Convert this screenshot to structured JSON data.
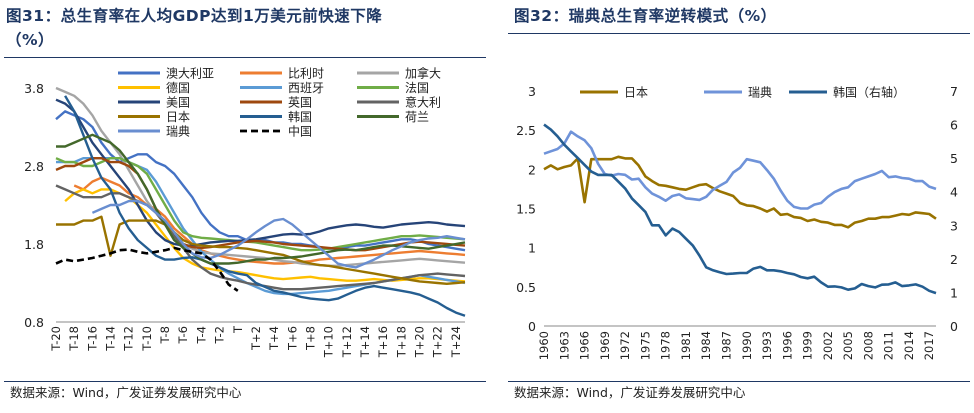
{
  "left": {
    "title_line1": "图31：总生育率在人均GDP达到1万美元前快速下降",
    "title_line2": "（%）",
    "source": "数据来源：Wind，广发证券发展研究中心"
  },
  "right": {
    "title": "图32：瑞典总生育率逆转模式（%）",
    "source": "数据来源：Wind，广发证券发展研究中心"
  },
  "chart_data": [
    {
      "type": "line",
      "title": "总生育率在人均GDP达到1万美元前快速下降（%）",
      "categories": [
        "T-20",
        "T-19",
        "T-18",
        "T-17",
        "T-16",
        "T-15",
        "T-14",
        "T-13",
        "T-12",
        "T-11",
        "T-10",
        "T-9",
        "T-8",
        "T-7",
        "T-6",
        "T-5",
        "T-4",
        "T-3",
        "T-2",
        "T-1",
        "T",
        "T+1",
        "T+2",
        "T+3",
        "T+4",
        "T+5",
        "T+6",
        "T+7",
        "T+8",
        "T+9",
        "T+10",
        "T+11",
        "T+12",
        "T+13",
        "T+14",
        "T+15",
        "T+16",
        "T+17",
        "T+18",
        "T+19",
        "T+20",
        "T+21",
        "T+22",
        "T+23",
        "T+24",
        "T+25"
      ],
      "tick_labels": [
        "T-20",
        "T-18",
        "T-16",
        "T-14",
        "T-12",
        "T-10",
        "T-8",
        "T-6",
        "T-4",
        "T-2",
        "T",
        "T+2",
        "T+4",
        "T+6",
        "T+8",
        "T+10",
        "T+12",
        "T+14",
        "T+16",
        "T+18",
        "T+20",
        "T+22",
        "T+24"
      ],
      "ylim": [
        0.8,
        3.8
      ],
      "yticks": [
        0.8,
        1.8,
        2.8,
        3.8
      ],
      "legend_position": "top",
      "series": [
        {
          "name": "澳大利亚",
          "color": "#4472c4",
          "dash": false,
          "values": [
            3.4,
            3.5,
            3.45,
            3.4,
            3.3,
            3.1,
            2.95,
            2.85,
            2.9,
            2.95,
            2.95,
            2.85,
            2.8,
            2.7,
            2.55,
            2.4,
            2.2,
            2.05,
            1.95,
            1.9,
            1.9,
            1.85,
            1.85,
            1.85,
            1.82,
            1.82,
            1.8,
            1.8,
            1.78,
            1.76,
            1.74,
            1.74,
            1.76,
            1.78,
            1.78,
            1.8,
            1.82,
            1.84,
            1.86,
            1.86,
            1.84,
            1.8,
            1.78,
            1.76,
            1.74,
            1.72
          ]
        },
        {
          "name": "比利时",
          "color": "#ed7d31",
          "dash": false,
          "values": [
            null,
            null,
            2.55,
            2.5,
            2.6,
            2.65,
            2.6,
            2.55,
            2.45,
            2.4,
            2.3,
            2.25,
            2.15,
            2.0,
            1.9,
            1.8,
            1.72,
            1.68,
            1.65,
            1.62,
            1.6,
            1.58,
            1.57,
            1.56,
            1.55,
            1.55,
            1.56,
            1.57,
            1.58,
            1.6,
            1.61,
            1.62,
            1.63,
            1.64,
            1.65,
            1.66,
            1.67,
            1.68,
            1.69,
            1.7,
            1.71,
            1.7,
            1.69,
            1.68,
            1.67,
            1.66
          ]
        },
        {
          "name": "加拿大",
          "color": "#a5a5a5",
          "dash": false,
          "values": [
            3.8,
            3.75,
            3.7,
            3.6,
            3.45,
            3.25,
            3.1,
            2.95,
            2.75,
            2.55,
            2.35,
            2.2,
            2.05,
            1.9,
            1.8,
            1.74,
            1.7,
            1.68,
            1.67,
            1.66,
            1.65,
            1.64,
            1.63,
            1.62,
            1.6,
            1.58,
            1.57,
            1.55,
            1.54,
            1.53,
            1.52,
            1.52,
            1.53,
            1.54,
            1.55,
            1.56,
            1.57,
            1.58,
            1.59,
            1.6,
            1.61,
            1.6,
            1.59,
            1.58,
            1.57,
            1.56
          ]
        },
        {
          "name": "德国",
          "color": "#ffc000",
          "dash": false,
          "values": [
            null,
            2.35,
            2.45,
            2.5,
            2.45,
            2.5,
            2.5,
            2.45,
            2.4,
            2.3,
            2.2,
            2.05,
            1.9,
            1.75,
            1.62,
            1.55,
            1.5,
            1.48,
            1.46,
            1.45,
            1.44,
            1.42,
            1.4,
            1.38,
            1.36,
            1.35,
            1.36,
            1.37,
            1.38,
            1.36,
            1.35,
            1.34,
            1.33,
            1.33,
            1.34,
            1.35,
            1.34,
            1.33,
            1.34,
            1.35,
            1.36,
            1.36,
            1.35,
            1.34,
            1.33,
            1.32
          ]
        },
        {
          "name": "西班牙",
          "color": "#5b9bd5",
          "dash": false,
          "values": [
            2.85,
            2.85,
            2.85,
            2.9,
            2.9,
            2.9,
            2.9,
            2.9,
            2.85,
            2.8,
            2.75,
            2.6,
            2.4,
            2.2,
            2.0,
            1.85,
            1.7,
            1.6,
            1.5,
            1.42,
            1.36,
            1.3,
            1.25,
            1.2,
            1.17,
            1.16,
            1.16,
            1.17,
            1.18,
            1.19,
            1.2,
            1.22,
            1.24,
            1.26,
            1.28,
            1.3,
            1.32,
            1.34,
            1.36,
            1.38,
            1.4,
            1.38,
            1.36,
            1.34,
            1.32,
            1.3
          ]
        },
        {
          "name": "法国",
          "color": "#70ad47",
          "dash": false,
          "values": [
            2.9,
            2.85,
            2.85,
            2.8,
            2.8,
            2.85,
            2.9,
            2.9,
            2.85,
            2.8,
            2.7,
            2.5,
            2.3,
            2.1,
            1.95,
            1.9,
            1.88,
            1.87,
            1.86,
            1.85,
            1.84,
            1.83,
            1.82,
            1.8,
            1.78,
            1.76,
            1.74,
            1.72,
            1.72,
            1.73,
            1.74,
            1.76,
            1.78,
            1.8,
            1.82,
            1.84,
            1.86,
            1.88,
            1.9,
            1.9,
            1.91,
            1.9,
            1.89,
            1.88,
            1.87,
            1.86
          ]
        },
        {
          "name": "美国",
          "color": "#264478",
          "dash": false,
          "values": [
            3.65,
            3.6,
            3.5,
            3.3,
            3.1,
            2.95,
            2.8,
            2.65,
            2.5,
            2.3,
            2.1,
            1.95,
            1.85,
            1.8,
            1.78,
            1.78,
            1.8,
            1.82,
            1.83,
            1.84,
            1.84,
            1.85,
            1.86,
            1.88,
            1.9,
            1.92,
            1.93,
            1.92,
            1.93,
            1.96,
            2.0,
            2.02,
            2.04,
            2.05,
            2.04,
            2.02,
            2.01,
            2.03,
            2.05,
            2.06,
            2.07,
            2.08,
            2.07,
            2.05,
            2.04,
            2.03
          ]
        },
        {
          "name": "英国",
          "color": "#9e480e",
          "dash": false,
          "values": [
            2.75,
            2.8,
            2.8,
            2.85,
            2.9,
            2.9,
            2.85,
            2.85,
            2.8,
            2.7,
            2.5,
            2.25,
            2.05,
            1.9,
            1.8,
            1.76,
            1.75,
            1.76,
            1.78,
            1.8,
            1.82,
            1.83,
            1.84,
            1.83,
            1.82,
            1.8,
            1.79,
            1.78,
            1.77,
            1.76,
            1.75,
            1.74,
            1.73,
            1.72,
            1.72,
            1.74,
            1.76,
            1.78,
            1.8,
            1.82,
            1.83,
            1.82,
            1.81,
            1.8,
            1.79,
            1.78
          ]
        },
        {
          "name": "意大利",
          "color": "#636363",
          "dash": false,
          "values": [
            2.55,
            2.5,
            2.45,
            2.4,
            2.4,
            2.4,
            2.45,
            2.45,
            2.4,
            2.35,
            2.3,
            2.2,
            2.05,
            1.9,
            1.75,
            1.6,
            1.5,
            1.42,
            1.38,
            1.35,
            1.33,
            1.3,
            1.28,
            1.26,
            1.24,
            1.22,
            1.22,
            1.22,
            1.23,
            1.24,
            1.25,
            1.26,
            1.27,
            1.28,
            1.29,
            1.3,
            1.32,
            1.34,
            1.36,
            1.38,
            1.4,
            1.41,
            1.42,
            1.41,
            1.4,
            1.39
          ]
        },
        {
          "name": "日本",
          "color": "#997300",
          "dash": false,
          "values": [
            2.05,
            2.05,
            2.05,
            2.1,
            2.1,
            2.15,
            1.65,
            2.05,
            2.1,
            2.1,
            2.1,
            2.1,
            2.05,
            1.95,
            1.85,
            1.8,
            1.78,
            1.77,
            1.76,
            1.76,
            1.75,
            1.74,
            1.72,
            1.7,
            1.68,
            1.66,
            1.62,
            1.58,
            1.55,
            1.53,
            1.52,
            1.5,
            1.48,
            1.46,
            1.44,
            1.42,
            1.4,
            1.38,
            1.36,
            1.34,
            1.32,
            1.31,
            1.3,
            1.29,
            1.3,
            1.31
          ]
        },
        {
          "name": "韩国",
          "color": "#255e91",
          "dash": false,
          "values": [
            null,
            3.7,
            3.5,
            3.2,
            2.9,
            2.65,
            2.5,
            2.2,
            2.0,
            1.85,
            1.75,
            1.65,
            1.6,
            1.6,
            1.62,
            1.63,
            1.6,
            1.55,
            1.5,
            1.45,
            1.42,
            1.4,
            1.3,
            1.25,
            1.2,
            1.18,
            1.15,
            1.12,
            1.1,
            1.09,
            1.08,
            1.1,
            1.15,
            1.2,
            1.24,
            1.26,
            1.24,
            1.22,
            1.2,
            1.18,
            1.15,
            1.1,
            1.05,
            0.98,
            0.92,
            0.88
          ]
        },
        {
          "name": "荷兰",
          "color": "#43682b",
          "dash": false,
          "values": [
            3.05,
            3.05,
            3.1,
            3.15,
            3.2,
            3.15,
            3.1,
            3.0,
            2.85,
            2.7,
            2.5,
            2.25,
            2.05,
            1.85,
            1.75,
            1.68,
            1.6,
            1.55,
            1.55,
            1.55,
            1.56,
            1.58,
            1.6,
            1.6,
            1.62,
            1.62,
            1.63,
            1.64,
            1.66,
            1.68,
            1.7,
            1.72,
            1.73,
            1.72,
            1.74,
            1.76,
            1.78,
            1.78,
            1.77,
            1.76,
            1.75,
            1.74,
            1.76,
            1.78,
            1.8,
            1.82
          ]
        },
        {
          "name": "瑞典",
          "color": "#698ed0",
          "dash": false,
          "values": [
            null,
            null,
            null,
            null,
            2.2,
            2.25,
            2.3,
            2.3,
            2.35,
            2.35,
            2.3,
            2.2,
            2.1,
            1.95,
            1.8,
            1.68,
            1.63,
            1.62,
            1.66,
            1.72,
            1.78,
            1.86,
            1.95,
            2.03,
            2.1,
            2.12,
            2.05,
            1.95,
            1.85,
            1.75,
            1.65,
            1.55,
            1.52,
            1.5,
            1.55,
            1.6,
            1.66,
            1.72,
            1.77,
            1.82,
            1.85,
            1.87,
            1.88,
            1.9,
            1.88,
            1.86
          ]
        },
        {
          "name": "中国",
          "color": "#000000",
          "dash": true,
          "values": [
            1.55,
            1.6,
            1.58,
            1.6,
            1.62,
            1.65,
            1.68,
            1.72,
            1.73,
            1.7,
            1.68,
            1.7,
            1.72,
            1.75,
            1.72,
            1.7,
            1.68,
            1.6,
            1.45,
            1.28,
            1.2,
            null,
            null,
            null,
            null,
            null,
            null,
            null,
            null,
            null,
            null,
            null,
            null,
            null,
            null,
            null,
            null,
            null,
            null,
            null,
            null,
            null,
            null,
            null,
            null,
            null
          ]
        }
      ]
    },
    {
      "type": "line",
      "title": "瑞典总生育率逆转模式（%）",
      "x_tick_labels": [
        "1960",
        "1963",
        "1966",
        "1969",
        "1972",
        "1975",
        "1978",
        "1981",
        "1984",
        "1987",
        "1990",
        "1993",
        "1996",
        "1999",
        "2002",
        "2005",
        "2008",
        "2011",
        "2014",
        "2017"
      ],
      "x_start": 1960,
      "x_end": 2018,
      "ylim_left": [
        0,
        3
      ],
      "yticks_left": [
        0,
        0.5,
        1,
        1.5,
        2,
        2.5,
        3
      ],
      "ylim_right": [
        0,
        7
      ],
      "yticks_right": [
        0,
        1,
        2,
        3,
        4,
        5,
        6,
        7
      ],
      "legend_position": "top",
      "series": [
        {
          "name": "日本",
          "color": "#997300",
          "axis": "left",
          "values": [
            2.0,
            2.05,
            2.0,
            2.03,
            2.05,
            2.14,
            1.58,
            2.13,
            2.13,
            2.13,
            2.13,
            2.16,
            2.14,
            2.14,
            2.05,
            1.91,
            1.85,
            1.8,
            1.79,
            1.77,
            1.75,
            1.74,
            1.77,
            1.8,
            1.81,
            1.76,
            1.72,
            1.69,
            1.66,
            1.57,
            1.54,
            1.53,
            1.5,
            1.46,
            1.5,
            1.42,
            1.43,
            1.39,
            1.38,
            1.34,
            1.36,
            1.33,
            1.32,
            1.29,
            1.29,
            1.26,
            1.32,
            1.34,
            1.37,
            1.37,
            1.39,
            1.39,
            1.41,
            1.43,
            1.42,
            1.45,
            1.44,
            1.43,
            1.37
          ]
        },
        {
          "name": "瑞典",
          "color": "#6f93d9",
          "axis": "left",
          "values": [
            2.2,
            2.23,
            2.26,
            2.33,
            2.48,
            2.42,
            2.37,
            2.27,
            2.07,
            1.94,
            1.92,
            1.94,
            1.93,
            1.87,
            1.88,
            1.77,
            1.69,
            1.65,
            1.6,
            1.66,
            1.68,
            1.63,
            1.62,
            1.61,
            1.65,
            1.74,
            1.79,
            1.84,
            1.96,
            2.02,
            2.13,
            2.11,
            2.09,
            1.99,
            1.88,
            1.73,
            1.6,
            1.52,
            1.5,
            1.5,
            1.55,
            1.57,
            1.65,
            1.71,
            1.75,
            1.77,
            1.85,
            1.88,
            1.91,
            1.94,
            1.98,
            1.9,
            1.91,
            1.89,
            1.88,
            1.85,
            1.85,
            1.78,
            1.75
          ]
        },
        {
          "name": "韩国（右轴）",
          "color": "#255e91",
          "axis": "right",
          "values": [
            6.0,
            5.85,
            5.65,
            5.4,
            5.2,
            5.0,
            4.8,
            4.6,
            4.5,
            4.5,
            4.5,
            4.3,
            4.1,
            3.8,
            3.6,
            3.4,
            3.0,
            3.0,
            2.7,
            2.9,
            2.8,
            2.6,
            2.4,
            2.1,
            1.75,
            1.66,
            1.6,
            1.55,
            1.56,
            1.58,
            1.58,
            1.71,
            1.76,
            1.66,
            1.66,
            1.63,
            1.58,
            1.54,
            1.46,
            1.42,
            1.47,
            1.3,
            1.17,
            1.18,
            1.15,
            1.08,
            1.12,
            1.25,
            1.19,
            1.15,
            1.23,
            1.24,
            1.3,
            1.19,
            1.21,
            1.24,
            1.17,
            1.05,
            0.98
          ]
        }
      ]
    }
  ]
}
